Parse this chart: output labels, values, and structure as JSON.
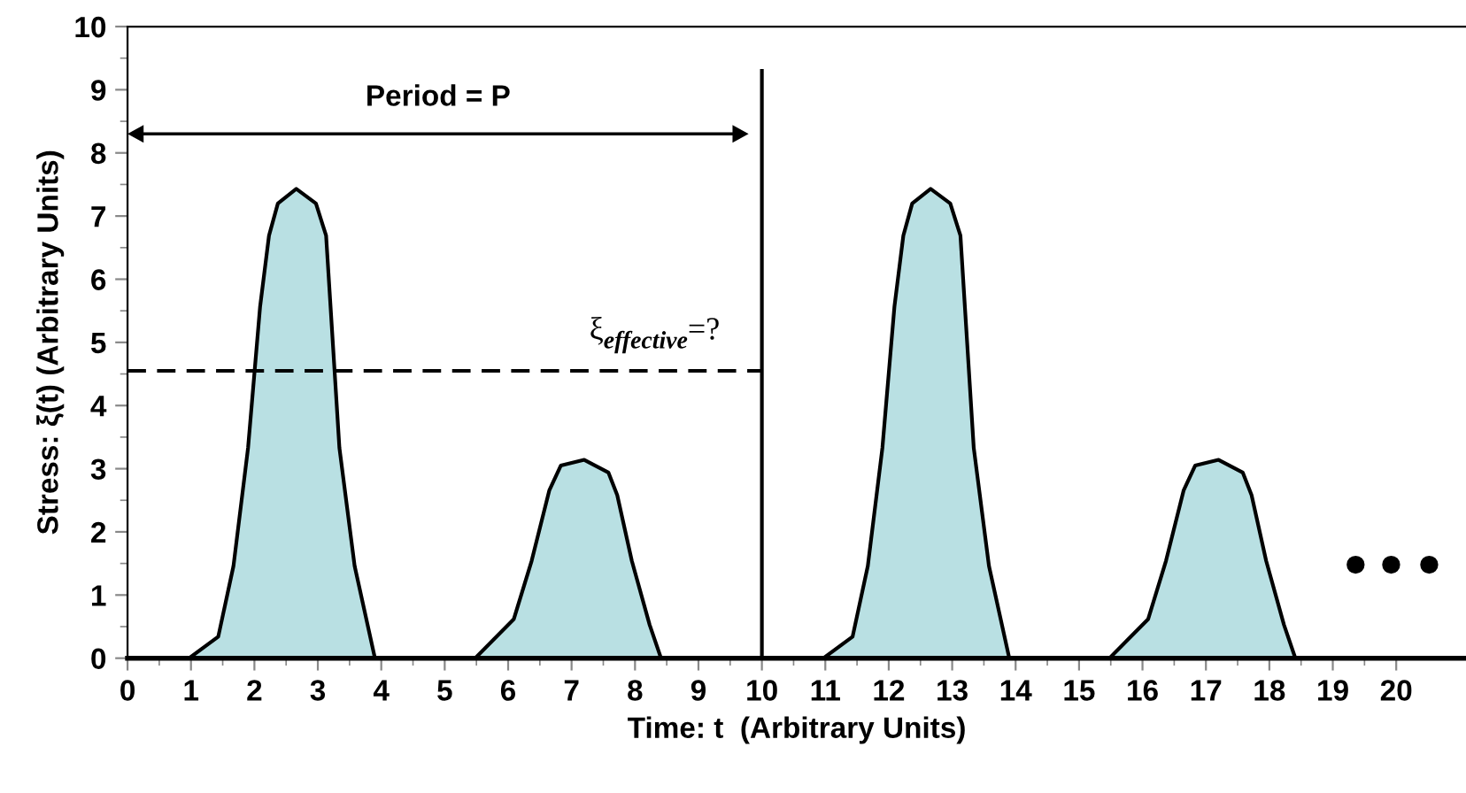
{
  "chart_data": {
    "type": "area",
    "xlabel": "Time: t  (Arbitrary Units)",
    "ylabel": "Stress: ξ(t) (Arbitrary Units)",
    "xlim": [
      0,
      21.1
    ],
    "ylim": [
      0,
      10
    ],
    "xticks": [
      0,
      1,
      2,
      3,
      4,
      5,
      6,
      7,
      8,
      9,
      10,
      11,
      12,
      13,
      14,
      15,
      16,
      17,
      18,
      19,
      20
    ],
    "yticks": [
      0,
      1,
      2,
      3,
      4,
      5,
      6,
      7,
      8,
      9,
      10
    ],
    "grid": false,
    "legend": false,
    "series": [
      {
        "color": "#b9e0e3",
        "x": [
          0.97,
          1.43,
          1.67,
          1.9,
          2.09,
          2.23,
          2.37,
          2.66,
          2.97,
          3.13,
          3.2,
          3.34,
          3.58,
          3.9
        ],
        "values": [
          0,
          0.34,
          1.46,
          3.33,
          5.57,
          6.69,
          7.2,
          7.43,
          7.2,
          6.69,
          5.57,
          3.33,
          1.46,
          0
        ]
      },
      {
        "color": "#b9e0e3",
        "x": [
          5.48,
          6.09,
          6.37,
          6.65,
          6.83,
          7.2,
          7.58,
          7.72,
          7.95,
          8.23,
          8.41
        ],
        "values": [
          0,
          0.62,
          1.54,
          2.66,
          3.05,
          3.14,
          2.94,
          2.58,
          1.54,
          0.53,
          0
        ]
      },
      {
        "color": "#b9e0e3",
        "x": [
          10.97,
          11.43,
          11.67,
          11.9,
          12.09,
          12.23,
          12.37,
          12.66,
          12.97,
          13.13,
          13.2,
          13.34,
          13.58,
          13.9
        ],
        "values": [
          0,
          0.34,
          1.46,
          3.33,
          5.57,
          6.69,
          7.2,
          7.43,
          7.2,
          6.69,
          5.57,
          3.33,
          1.46,
          0
        ]
      },
      {
        "color": "#b9e0e3",
        "x": [
          15.48,
          16.09,
          16.37,
          16.65,
          16.83,
          17.2,
          17.58,
          17.72,
          17.95,
          18.23,
          18.41
        ],
        "values": [
          0,
          0.62,
          1.54,
          2.66,
          3.05,
          3.14,
          2.94,
          2.58,
          1.54,
          0.53,
          0
        ]
      },
      {
        "type": "line",
        "color": "#000000",
        "line_style": "dashed",
        "x": [
          0,
          10
        ],
        "values": [
          4.55,
          4.55
        ]
      },
      {
        "type": "line",
        "color": "#000000",
        "line_style": "solid",
        "x": [
          10,
          10
        ],
        "values": [
          0,
          9.3
        ]
      },
      {
        "type": "scatter",
        "color": "#000000",
        "x": [
          19.36,
          19.92,
          20.52
        ],
        "values": [
          1.48,
          1.48,
          1.48
        ]
      }
    ],
    "annotations": [
      "Period = P",
      "ξ$_{effective}$=?"
    ]
  }
}
